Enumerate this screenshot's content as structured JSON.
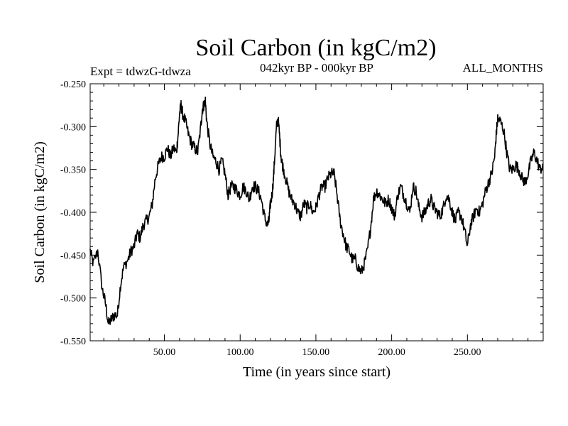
{
  "chart_data": {
    "type": "line",
    "title": "Soil Carbon (in kgC/m2)",
    "subtitle": "042kyr BP - 000kyr BP",
    "experiment": "Expt = tdwzG-tdwza",
    "months": "ALL_MONTHS",
    "xlabel": "Time (in years since start)",
    "ylabel": "Soil Carbon (in kgC/m2)",
    "xlim": [
      1,
      300
    ],
    "ylim": [
      -0.55,
      -0.25
    ],
    "x_ticks": [
      50,
      100,
      150,
      200,
      250
    ],
    "x_tick_labels": [
      "50.00",
      "100.00",
      "150.00",
      "200.00",
      "250.00"
    ],
    "y_ticks": [
      -0.25,
      -0.3,
      -0.35,
      -0.4,
      -0.45,
      -0.5,
      -0.55
    ],
    "y_tick_labels": [
      "-0.250",
      "-0.300",
      "-0.350",
      "-0.400",
      "-0.450",
      "-0.500",
      "-0.550"
    ],
    "series": [
      {
        "name": "Soil Carbon",
        "color": "#000000",
        "x": [
          1,
          3,
          6,
          9,
          11,
          13,
          15,
          17,
          19,
          21,
          23,
          26,
          28,
          30,
          32,
          34,
          36,
          38,
          40,
          42,
          44,
          46,
          48,
          50,
          52,
          54,
          56,
          58,
          59,
          60,
          61,
          62,
          64,
          66,
          68,
          70,
          72,
          74,
          75,
          76,
          77,
          78,
          80,
          82,
          84,
          86,
          88,
          90,
          92,
          94,
          96,
          98,
          100,
          102,
          104,
          106,
          108,
          110,
          112,
          114,
          116,
          118,
          119,
          120,
          121,
          122,
          123,
          124,
          125,
          126,
          127,
          128,
          130,
          132,
          134,
          136,
          138,
          140,
          142,
          144,
          146,
          148,
          150,
          152,
          154,
          156,
          158,
          160,
          162,
          164,
          166,
          168,
          170,
          172,
          174,
          176,
          178,
          180,
          182,
          184,
          186,
          188,
          190,
          192,
          194,
          196,
          198,
          200,
          202,
          204,
          206,
          208,
          210,
          212,
          214,
          216,
          218,
          220,
          222,
          224,
          226,
          228,
          230,
          232,
          234,
          236,
          238,
          240,
          242,
          244,
          246,
          248,
          250,
          252,
          254,
          256,
          258,
          260,
          262,
          264,
          266,
          268,
          269,
          270,
          272,
          274,
          276,
          278,
          280,
          282,
          284,
          286,
          288,
          290,
          292,
          294,
          296,
          298,
          300
        ],
        "values": [
          -0.445,
          -0.46,
          -0.445,
          -0.49,
          -0.505,
          -0.53,
          -0.525,
          -0.52,
          -0.52,
          -0.485,
          -0.465,
          -0.455,
          -0.445,
          -0.44,
          -0.425,
          -0.43,
          -0.415,
          -0.41,
          -0.405,
          -0.39,
          -0.36,
          -0.345,
          -0.335,
          -0.335,
          -0.325,
          -0.335,
          -0.325,
          -0.33,
          -0.31,
          -0.285,
          -0.275,
          -0.285,
          -0.295,
          -0.31,
          -0.32,
          -0.325,
          -0.33,
          -0.3,
          -0.28,
          -0.275,
          -0.27,
          -0.295,
          -0.32,
          -0.335,
          -0.34,
          -0.35,
          -0.34,
          -0.355,
          -0.38,
          -0.37,
          -0.37,
          -0.375,
          -0.38,
          -0.37,
          -0.375,
          -0.385,
          -0.37,
          -0.37,
          -0.375,
          -0.385,
          -0.405,
          -0.415,
          -0.41,
          -0.39,
          -0.38,
          -0.36,
          -0.33,
          -0.3,
          -0.29,
          -0.31,
          -0.335,
          -0.345,
          -0.36,
          -0.375,
          -0.385,
          -0.39,
          -0.4,
          -0.405,
          -0.39,
          -0.395,
          -0.39,
          -0.4,
          -0.395,
          -0.38,
          -0.37,
          -0.37,
          -0.36,
          -0.355,
          -0.355,
          -0.38,
          -0.41,
          -0.425,
          -0.44,
          -0.445,
          -0.455,
          -0.455,
          -0.465,
          -0.47,
          -0.46,
          -0.445,
          -0.42,
          -0.385,
          -0.375,
          -0.38,
          -0.385,
          -0.39,
          -0.385,
          -0.395,
          -0.405,
          -0.38,
          -0.37,
          -0.38,
          -0.39,
          -0.4,
          -0.37,
          -0.375,
          -0.395,
          -0.405,
          -0.4,
          -0.39,
          -0.385,
          -0.395,
          -0.4,
          -0.405,
          -0.395,
          -0.38,
          -0.385,
          -0.4,
          -0.41,
          -0.4,
          -0.405,
          -0.42,
          -0.44,
          -0.415,
          -0.405,
          -0.395,
          -0.4,
          -0.39,
          -0.375,
          -0.365,
          -0.355,
          -0.335,
          -0.31,
          -0.29,
          -0.295,
          -0.305,
          -0.33,
          -0.35,
          -0.35,
          -0.345,
          -0.35,
          -0.36,
          -0.365,
          -0.355,
          -0.34,
          -0.33,
          -0.34,
          -0.35,
          -0.345
        ]
      }
    ]
  }
}
